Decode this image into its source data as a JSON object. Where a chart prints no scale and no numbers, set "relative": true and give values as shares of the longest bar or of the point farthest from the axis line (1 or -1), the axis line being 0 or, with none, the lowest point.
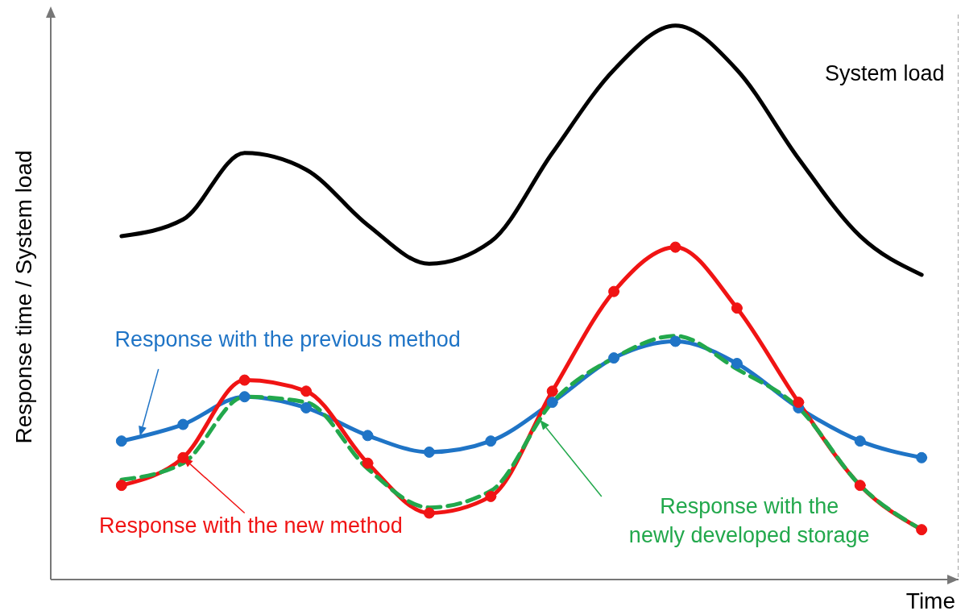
{
  "chart_data": {
    "type": "line",
    "relative": true,
    "xlabel": "Time",
    "ylabel": "Response time / System load",
    "grid": "x",
    "tick_labels": false,
    "categories": [
      null,
      null,
      null,
      null,
      null,
      null,
      null,
      null,
      null,
      null,
      null,
      null,
      null,
      null
    ],
    "series": [
      {
        "name": "System load",
        "color": "#000000",
        "marker": "none",
        "values": [
          0.62,
          0.65,
          0.77,
          0.74,
          0.64,
          0.57,
          0.61,
          0.77,
          0.92,
          1.0,
          0.92,
          0.76,
          0.62,
          0.55
        ]
      },
      {
        "name": "Response with the previous method",
        "color": "#1f74c6",
        "marker": "circle",
        "values": [
          0.25,
          0.28,
          0.33,
          0.31,
          0.26,
          0.23,
          0.25,
          0.32,
          0.4,
          0.43,
          0.39,
          0.31,
          0.25,
          0.22
        ]
      },
      {
        "name": "Response with the new method",
        "color": "#f01414",
        "marker": "circle",
        "values": [
          0.17,
          0.22,
          0.36,
          0.34,
          0.21,
          0.12,
          0.15,
          0.34,
          0.52,
          0.6,
          0.49,
          0.32,
          0.17,
          0.09
        ]
      },
      {
        "name": "Response with the newly developed storage",
        "color": "#22a84c",
        "marker": "none",
        "line_style": "dashed",
        "values": [
          0.18,
          0.21,
          0.33,
          0.32,
          0.2,
          0.13,
          0.16,
          0.32,
          0.4,
          0.44,
          0.38,
          0.31,
          0.17,
          0.09
        ]
      }
    ]
  }
}
